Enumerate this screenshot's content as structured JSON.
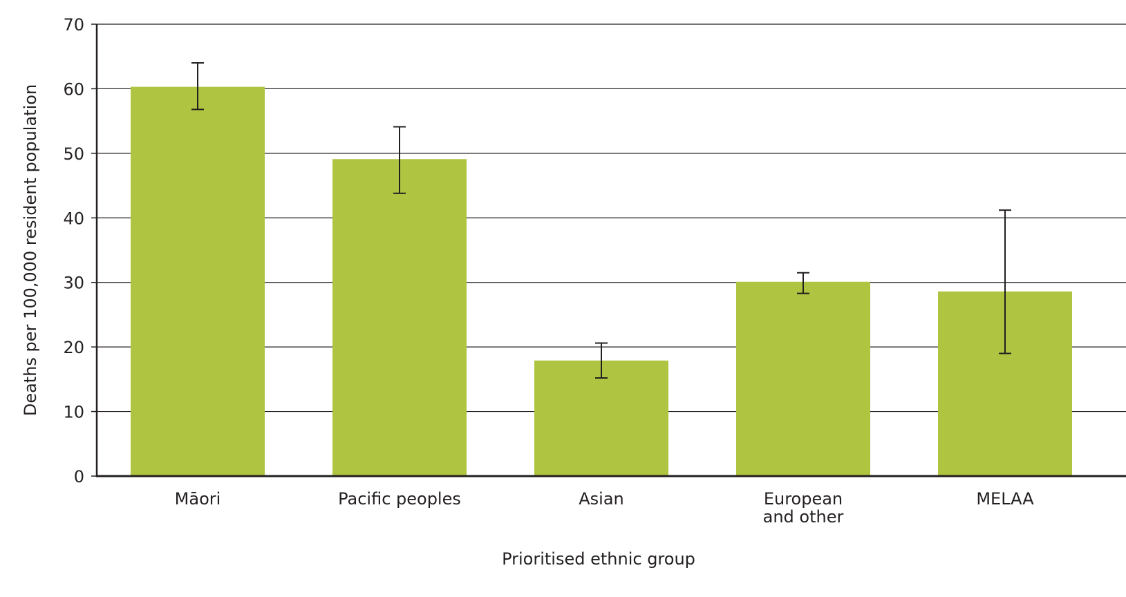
{
  "chart_data": {
    "type": "bar",
    "title": "",
    "xlabel": "Prioritised ethnic group",
    "ylabel": "Deaths per 100,000 resident population",
    "ylim": [
      0,
      70
    ],
    "yticks": [
      0,
      10,
      20,
      30,
      40,
      50,
      60,
      70
    ],
    "grid": true,
    "categories": [
      "Māori",
      "Pacific peoples",
      "Asian",
      "European and other",
      "MELAA"
    ],
    "category_lines": [
      [
        "Māori"
      ],
      [
        "Pacific peoples"
      ],
      [
        "Asian"
      ],
      [
        "European",
        "and other"
      ],
      [
        "MELAA"
      ]
    ],
    "values": [
      60.3,
      49.1,
      17.9,
      30.1,
      28.6
    ],
    "error_lower": [
      56.8,
      43.8,
      15.2,
      28.3,
      19.0
    ],
    "error_upper": [
      64.0,
      54.1,
      20.6,
      31.5,
      41.2
    ]
  },
  "colors": {
    "bar": "#afc441",
    "gridline": "#231f20",
    "axis": "#231f20",
    "errorbar": "#231f20",
    "text": "#231f20"
  }
}
